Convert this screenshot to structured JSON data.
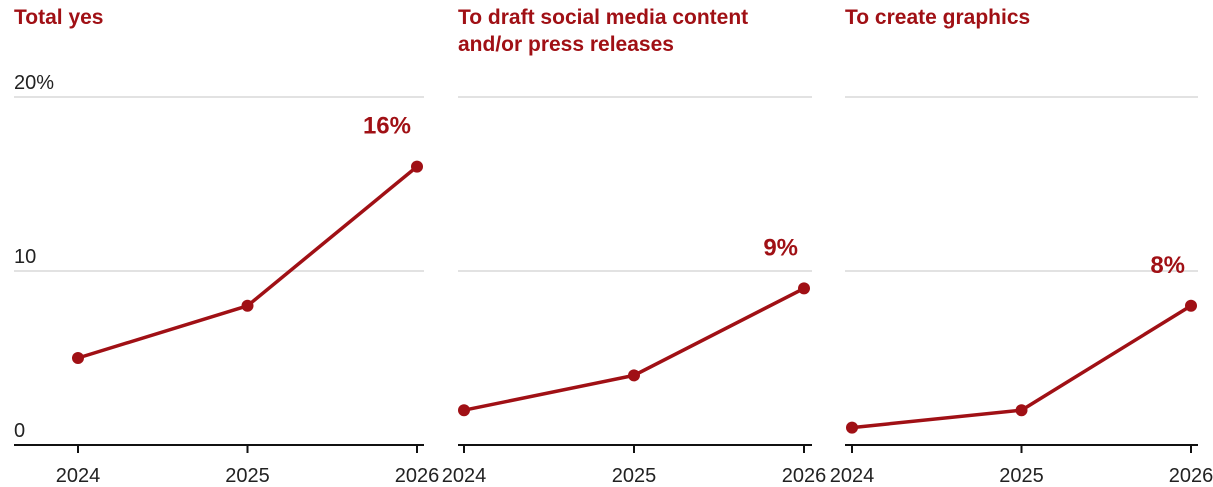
{
  "colors": {
    "accent": "#a01015",
    "gridline": "#d9d9d9",
    "axis": "#111111",
    "text": "#222222"
  },
  "chart_data": [
    {
      "type": "line",
      "title": "Total yes",
      "x": [
        "2024",
        "2025",
        "2026"
      ],
      "values": [
        5,
        8,
        16
      ],
      "last_label": "16%",
      "ylim": [
        0,
        20
      ],
      "y_ticks": [
        {
          "value": 0,
          "label": "0"
        },
        {
          "value": 10,
          "label": "10"
        },
        {
          "value": 20,
          "label": "20%"
        }
      ],
      "grid": true
    },
    {
      "type": "line",
      "title": "To draft social media content and/or press releases",
      "title_lines": [
        "To draft social media content",
        "and/or press releases"
      ],
      "x": [
        "2024",
        "2025",
        "2026"
      ],
      "values": [
        2,
        4,
        9
      ],
      "last_label": "9%",
      "ylim": [
        0,
        20
      ],
      "grid": true
    },
    {
      "type": "line",
      "title": "To create graphics",
      "x": [
        "2024",
        "2025",
        "2026"
      ],
      "values": [
        1,
        2,
        8
      ],
      "last_label": "8%",
      "ylim": [
        0,
        20
      ],
      "grid": true
    }
  ]
}
